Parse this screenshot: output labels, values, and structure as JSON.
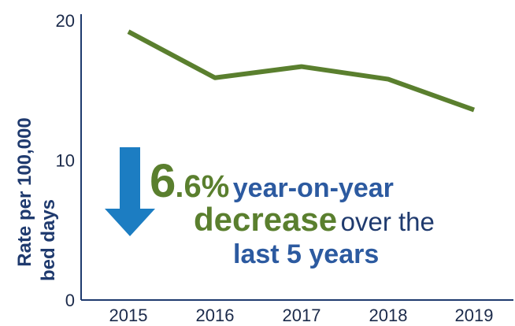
{
  "colors": {
    "line": "#5a7f2e",
    "axis": "#1f3a6e",
    "arrow": "#1c7dc2",
    "highlight_green": "#5a7f2e",
    "highlight_blue": "#2c5aa0",
    "text_dark": "#1f3a6e"
  },
  "icons": {
    "arrow": "down-arrow-icon"
  },
  "chart_data": {
    "type": "line",
    "x": [
      "2015",
      "2016",
      "2017",
      "2018",
      "2019"
    ],
    "series": [
      {
        "values": [
          19.2,
          15.9,
          16.7,
          15.8,
          13.6
        ]
      }
    ],
    "ylabel_lines": [
      "Rate per 100,000",
      "bed days"
    ],
    "xlabel": "",
    "ylim": [
      0,
      20
    ],
    "yticks": [
      "0",
      "10",
      "20"
    ],
    "grid": false
  },
  "callout": {
    "big_number": "6",
    "pct": ".6%",
    "phrase1": "year-on-year",
    "phrase2": "decrease",
    "phrase3": "over the",
    "phrase4": "last 5 years"
  }
}
